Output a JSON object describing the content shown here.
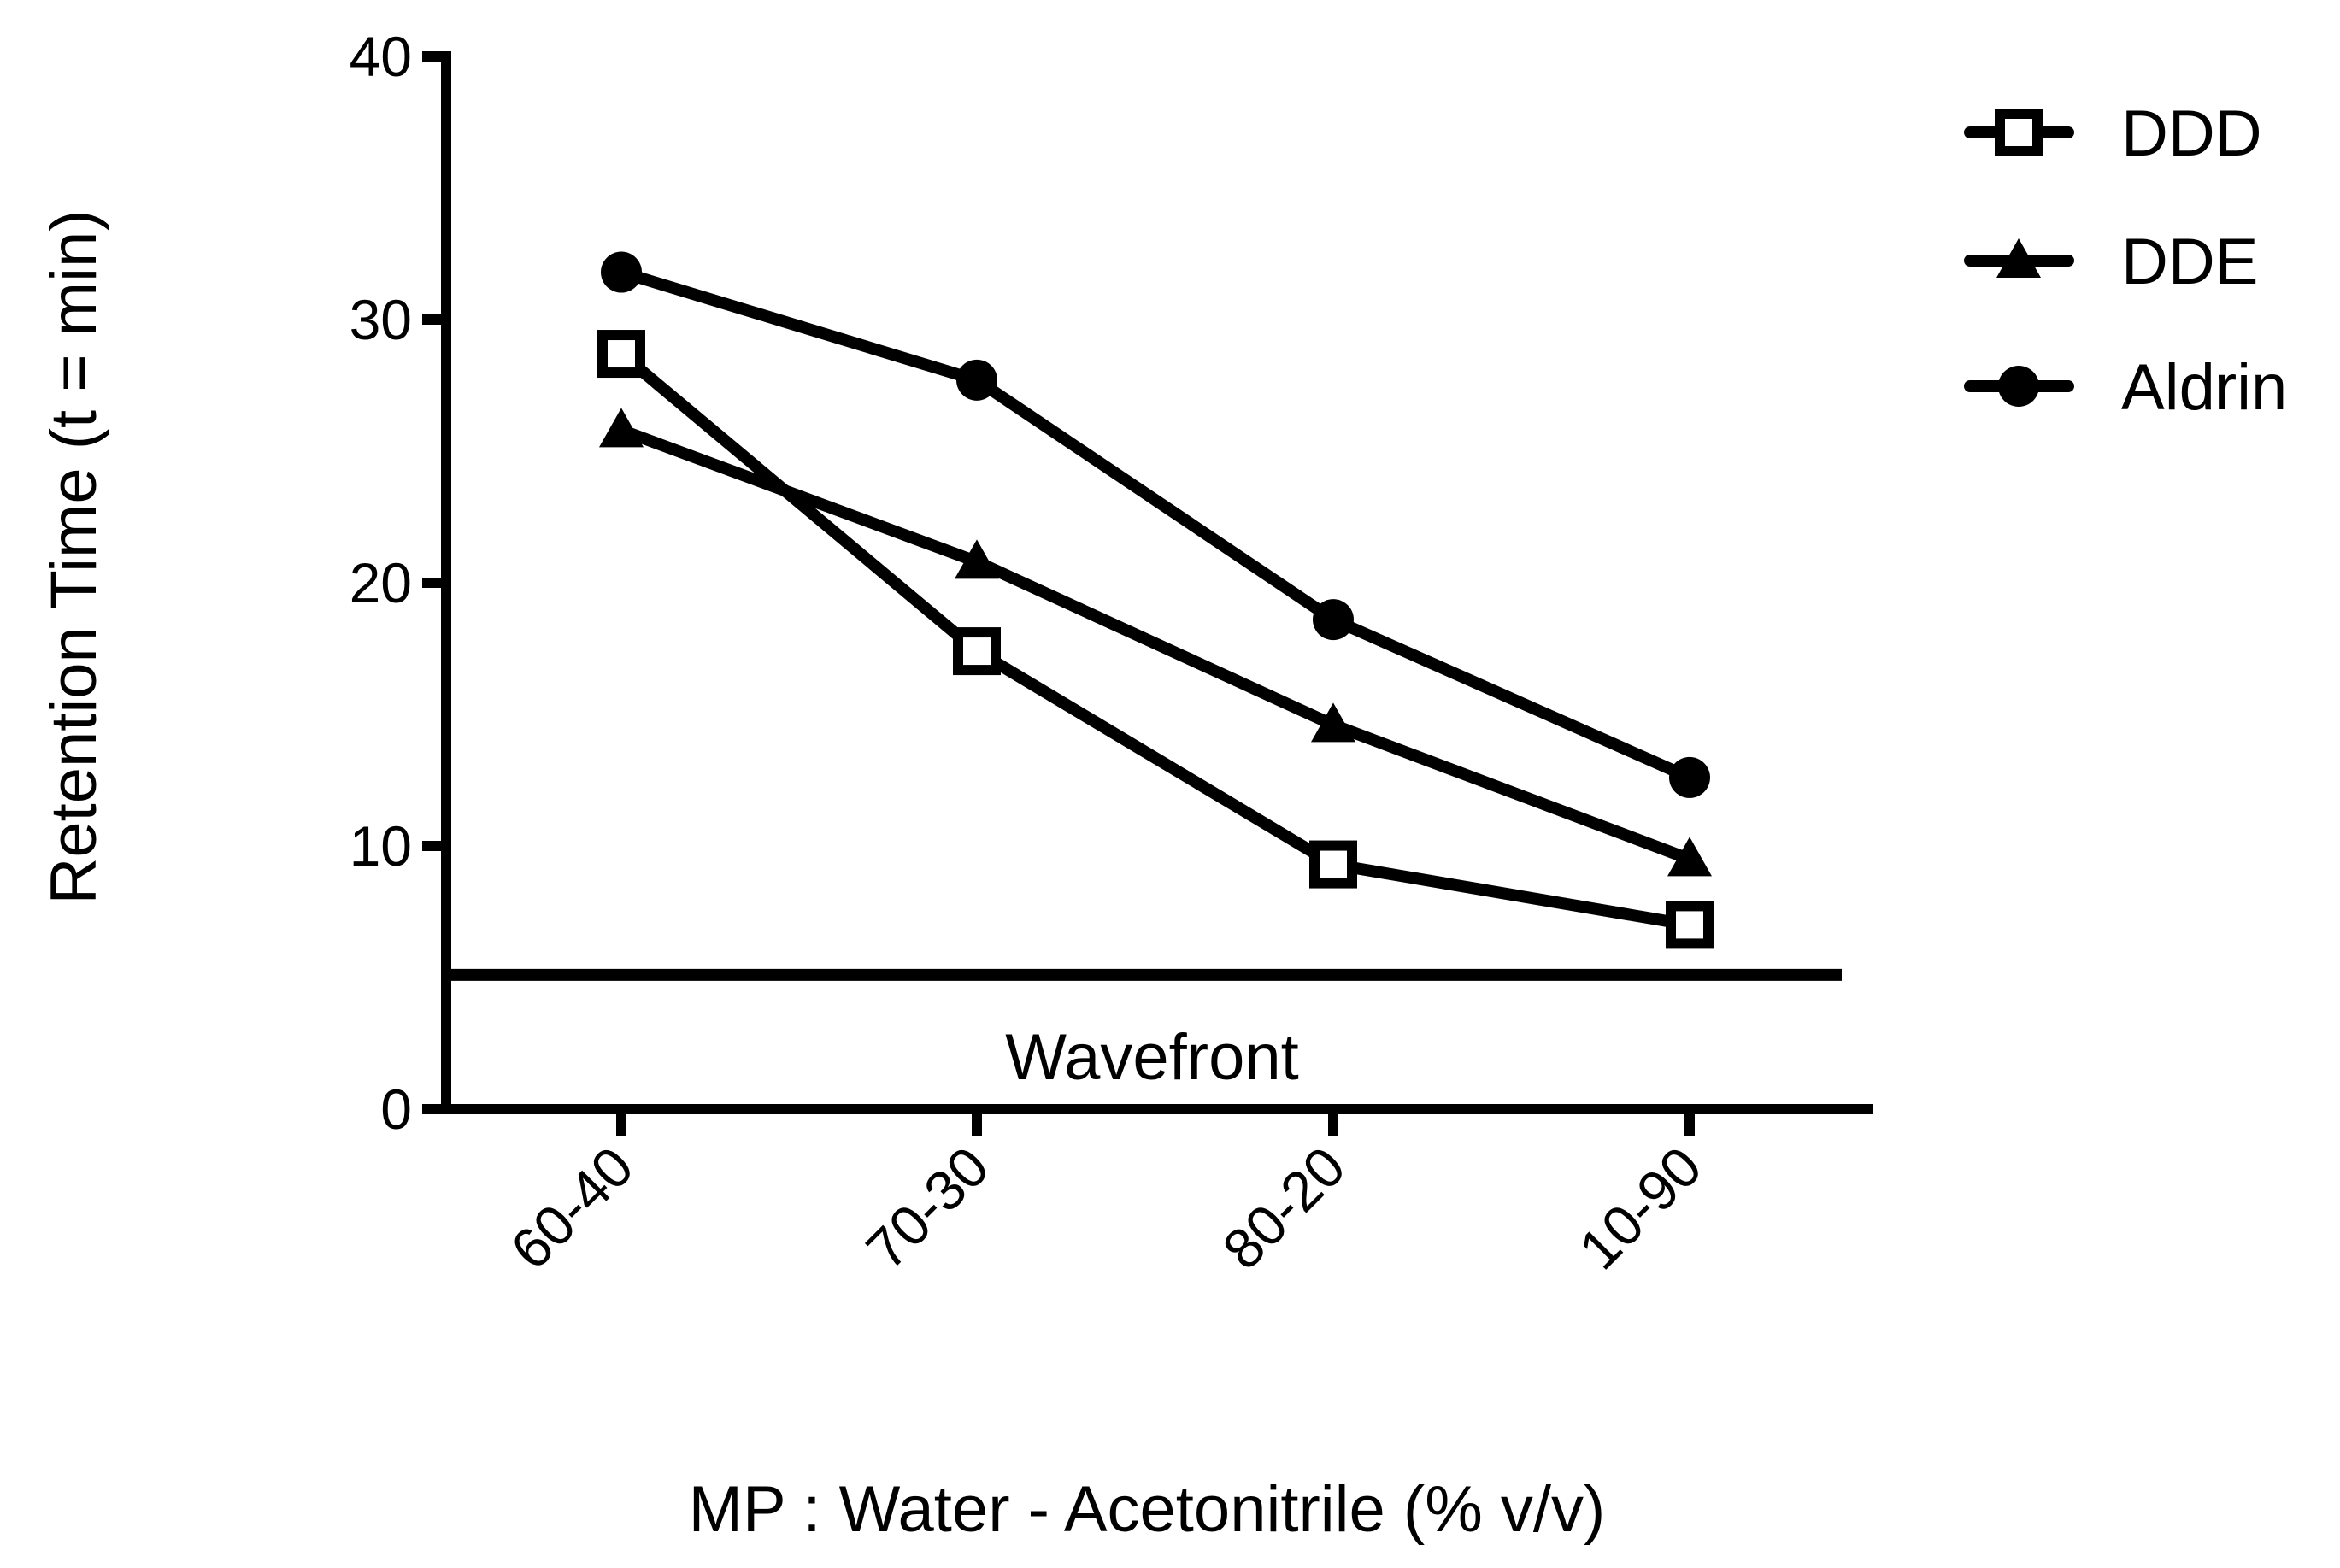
{
  "chart_data": {
    "type": "line",
    "title": "",
    "xlabel": "MP : Water - Acetonitrile (% v/v)",
    "ylabel": "Retention Time (t = min)",
    "categories": [
      "60-40",
      "70-30",
      "80-20",
      "10-90"
    ],
    "ylim": [
      0,
      40
    ],
    "yticks": [
      0,
      10,
      20,
      30,
      40
    ],
    "grid": false,
    "legend_position": "top-right",
    "series": [
      {
        "name": "DDD",
        "marker": "open-square",
        "values": [
          28.7,
          17.4,
          9.3,
          7.0
        ]
      },
      {
        "name": "DDE",
        "marker": "filled-triangle",
        "values": [
          25.8,
          20.8,
          14.6,
          9.5
        ]
      },
      {
        "name": "Aldrin",
        "marker": "filled-circle",
        "values": [
          31.8,
          27.7,
          18.6,
          12.6
        ]
      }
    ],
    "reference_line": {
      "label": "Wavefront",
      "y": 5.1
    },
    "colors": {
      "line": "#000000",
      "background": "#ffffff"
    }
  }
}
